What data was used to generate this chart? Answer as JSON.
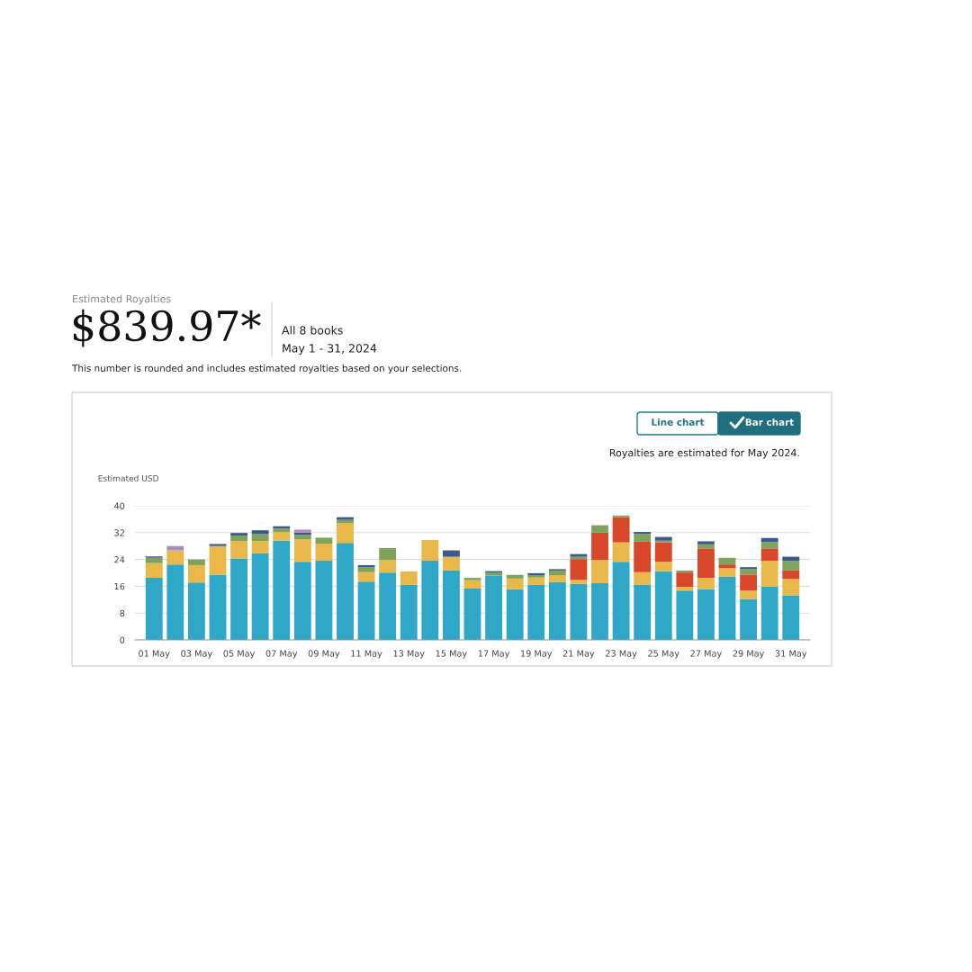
{
  "chart_data": {
    "type": "bar",
    "stacked": true,
    "title": "$839.97*",
    "ylabel": "Estimated USD",
    "annotations": [
      "Estimated Royalties",
      "All 8 books",
      "May 1 - 31, 2024",
      "This number is rounded and includes estimated royalties based on your selections.",
      "Line chart",
      "Bar chart",
      "Royalties are estimated for May 2024."
    ],
    "categories": [
      "01 May",
      null,
      "03 May",
      null,
      "05 May",
      null,
      "07 May",
      null,
      "09 May",
      null,
      "11 May",
      null,
      "13 May",
      null,
      "15 May",
      null,
      "17 May",
      null,
      "19 May",
      null,
      "21 May",
      null,
      "23 May",
      null,
      "25 May",
      null,
      "27 May",
      null,
      "29 May",
      null,
      "31 May"
    ],
    "series": [
      {
        "color": "#2fa8c8",
        "values": [
          18.5,
          22.5,
          17.1,
          19.4,
          24.3,
          25.8,
          29.6,
          23.3,
          23.6,
          28.9,
          17.4,
          20.1,
          16.4,
          23.6,
          20.7,
          15.3,
          19.2,
          15.1,
          16.4,
          17.2,
          16.7,
          16.9,
          23.3,
          16.5,
          20.5,
          14.7,
          15.2,
          18.8,
          12.2,
          15.9,
          13.3
        ]
      },
      {
        "color": "#e8b84a",
        "values": [
          4.4,
          4.2,
          5.2,
          8.6,
          5.2,
          3.7,
          2.6,
          6.7,
          5.1,
          6.0,
          2.8,
          3.7,
          4.0,
          6.2,
          4.1,
          2.5,
          null,
          3.2,
          2.2,
          2.1,
          1.2,
          6.9,
          5.8,
          3.7,
          2.8,
          1.1,
          3.3,
          2.6,
          2.5,
          7.7,
          4.9
        ]
      },
      {
        "color": "#d9472b",
        "values": [
          null,
          null,
          null,
          null,
          null,
          null,
          null,
          null,
          null,
          null,
          null,
          null,
          null,
          null,
          null,
          null,
          null,
          null,
          null,
          null,
          6.2,
          8.2,
          7.5,
          9.1,
          5.8,
          4.3,
          8.8,
          1.1,
          4.8,
          3.7,
          2.5
        ]
      },
      {
        "color": "#7fa35a",
        "values": [
          1.6,
          null,
          1.7,
          null,
          1.6,
          2.1,
          1.0,
          1.4,
          1.8,
          0.9,
          1.5,
          3.6,
          null,
          null,
          null,
          0.7,
          0.9,
          1.1,
          0.6,
          1.4,
          0.7,
          2.2,
          0.5,
          2.3,
          0.5,
          0.6,
          1.2,
          2.0,
          1.6,
          1.9,
          2.9
        ]
      },
      {
        "color": "#3a5a8c",
        "values": [
          0.4,
          null,
          null,
          0.6,
          0.8,
          1.1,
          0.7,
          0.6,
          null,
          0.8,
          0.6,
          null,
          null,
          null,
          1.9,
          null,
          0.4,
          null,
          0.7,
          0.4,
          0.8,
          null,
          null,
          0.6,
          1.1,
          null,
          0.9,
          null,
          0.6,
          1.2,
          1.2
        ]
      },
      {
        "color": "#a98bc9",
        "values": [
          null,
          1.3,
          null,
          null,
          null,
          null,
          null,
          0.9,
          null,
          null,
          null,
          null,
          null,
          null,
          null,
          null,
          null,
          null,
          null,
          null,
          null,
          null,
          null,
          null,
          null,
          null,
          null,
          null,
          null,
          null,
          null
        ]
      }
    ],
    "ylim": [
      0,
      40
    ],
    "yticks": [
      0,
      8,
      16,
      24,
      32,
      40
    ],
    "grid": "y",
    "legend": false
  }
}
